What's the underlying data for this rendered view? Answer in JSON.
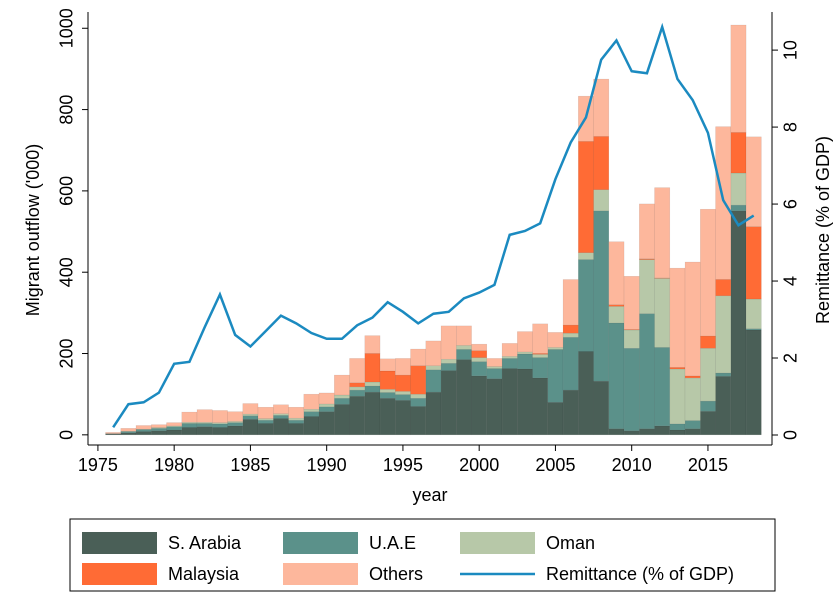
{
  "chart_data": {
    "type": "bar",
    "stacked": true,
    "x": [
      1976,
      1977,
      1978,
      1979,
      1980,
      1981,
      1982,
      1983,
      1984,
      1985,
      1986,
      1987,
      1988,
      1989,
      1990,
      1991,
      1992,
      1993,
      1994,
      1995,
      1996,
      1997,
      1998,
      1999,
      2000,
      2001,
      2002,
      2003,
      2004,
      2005,
      2006,
      2007,
      2008,
      2009,
      2010,
      2011,
      2012,
      2013,
      2014,
      2015,
      2016,
      2017,
      2018
    ],
    "series": [
      {
        "name": "S. Arabia",
        "type": "bar",
        "color": "#4a5f57",
        "values": [
          2,
          5,
          8,
          10,
          12,
          18,
          20,
          18,
          22,
          38,
          28,
          40,
          28,
          45,
          57,
          75,
          95,
          105,
          90,
          85,
          70,
          105,
          158,
          185,
          145,
          138,
          163,
          162,
          140,
          80,
          110,
          205,
          132,
          15,
          10,
          15,
          22,
          12,
          15,
          58,
          144,
          551,
          258
        ]
      },
      {
        "name": "U.A.E",
        "type": "bar",
        "color": "#5b918a",
        "values": [
          1,
          3,
          5,
          6,
          8,
          10,
          8,
          9,
          8,
          9,
          8,
          8,
          8,
          12,
          12,
          15,
          15,
          15,
          14,
          14,
          20,
          55,
          18,
          25,
          35,
          25,
          25,
          37,
          50,
          130,
          130,
          226,
          419,
          260,
          203,
          283,
          193,
          15,
          20,
          25,
          8,
          14,
          3
        ]
      },
      {
        "name": "Oman",
        "type": "bar",
        "color": "#b7c8a8",
        "values": [
          0,
          1,
          1,
          2,
          2,
          3,
          3,
          3,
          3,
          4,
          4,
          4,
          5,
          6,
          7,
          8,
          8,
          10,
          8,
          8,
          10,
          10,
          10,
          10,
          10,
          5,
          5,
          5,
          8,
          5,
          10,
          17,
          52,
          41,
          45,
          133,
          170,
          135,
          105,
          130,
          190,
          79,
          73
        ]
      },
      {
        "name": "Malaysia",
        "type": "bar",
        "color": "#ff6b35",
        "values": [
          0,
          0,
          0,
          0,
          0,
          0,
          0,
          0,
          0,
          0,
          0,
          0,
          0,
          0,
          0,
          0,
          10,
          70,
          45,
          40,
          70,
          0,
          0,
          0,
          17,
          0,
          0,
          0,
          2,
          0,
          20,
          274,
          131,
          4,
          1,
          2,
          1,
          4,
          5,
          30,
          40,
          100,
          178
        ]
      },
      {
        "name": "Others",
        "type": "bar",
        "color": "#fdb79c",
        "values": [
          3,
          7,
          9,
          7,
          8,
          25,
          31,
          30,
          24,
          26,
          28,
          22,
          27,
          37,
          27,
          49,
          60,
          44,
          30,
          41,
          41,
          61,
          82,
          48,
          16,
          20,
          32,
          50,
          73,
          37,
          112,
          111,
          141,
          155,
          131,
          135,
          222,
          244,
          280,
          312,
          376,
          264,
          221
        ]
      },
      {
        "name": "Remittance (% of GDP)",
        "type": "line",
        "axis": "y2",
        "color": "#1b8ac0",
        "values": [
          0.2,
          0.8,
          0.85,
          1.1,
          1.85,
          1.9,
          2.8,
          3.65,
          2.6,
          2.3,
          2.7,
          3.1,
          2.9,
          2.65,
          2.5,
          2.5,
          2.85,
          3.05,
          3.45,
          3.2,
          2.9,
          3.15,
          3.2,
          3.55,
          3.7,
          3.9,
          5.2,
          5.3,
          5.5,
          6.65,
          7.6,
          8.25,
          9.75,
          10.25,
          9.45,
          9.4,
          10.6,
          9.25,
          8.7,
          7.85,
          6.1,
          5.45,
          5.7
        ]
      }
    ],
    "xlabel": "year",
    "ylabel": "Migrant outflow ('000)",
    "y2label": "Remittance (% of GDP)",
    "xlim": [
      1974.35,
      2019.2
    ],
    "xticks": [
      1975,
      1980,
      1985,
      1990,
      1995,
      2000,
      2005,
      2010,
      2015
    ],
    "ylim": [
      -25,
      1040
    ],
    "yticks": [
      0,
      200,
      400,
      600,
      800,
      1000
    ],
    "y2lim": [
      -0.26,
      10.99
    ],
    "y2ticks": [
      0,
      2,
      4,
      6,
      8,
      10
    ],
    "legend": "bottom"
  }
}
